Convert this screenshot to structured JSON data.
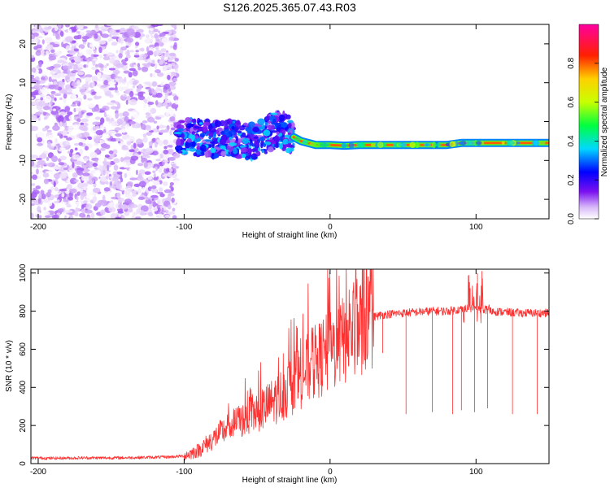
{
  "figure": {
    "title": "S126.2025.365.07.43.R03"
  },
  "chart_data": [
    {
      "type": "heatmap",
      "title": "",
      "xlabel": "Height of straight line (km)",
      "ylabel": "Frequency (Hz)",
      "xlim": [
        -205,
        150
      ],
      "ylim": [
        -25,
        25
      ],
      "xticks": [
        -200,
        -100,
        0,
        100
      ],
      "yticks": [
        -20,
        -10,
        0,
        10,
        20
      ],
      "colorbar": {
        "label": "Normalized spectral amplitude",
        "range": [
          0.0,
          1.0
        ],
        "ticks": [
          "0.0",
          "0.2",
          "0.4",
          "0.6",
          "0.8"
        ],
        "tick_values": [
          0.0,
          0.2,
          0.4,
          0.6,
          0.8
        ],
        "colors": [
          "#ffffff",
          "#d8b8f8",
          "#7a10f0",
          "#0000ff",
          "#00d8ff",
          "#00ff40",
          "#c8ff00",
          "#ffd000",
          "#ff2000",
          "#ff00a0"
        ]
      },
      "signal_trace": {
        "x": [
          -100,
          -90,
          -80,
          -70,
          -60,
          -50,
          -42,
          -35,
          -30,
          -25,
          -20,
          -15,
          -10,
          -5,
          0,
          10,
          20,
          40,
          60,
          80,
          90,
          100,
          110,
          130,
          150
        ],
        "y": [
          -4,
          -4,
          -4.5,
          -4,
          -5,
          -5,
          -3,
          -2,
          -2.5,
          -4,
          -5,
          -5.5,
          -6,
          -6,
          -6,
          -6.2,
          -6,
          -6,
          -6,
          -6,
          -5.5,
          -5.5,
          -5.5,
          -5.5,
          -5.5
        ]
      },
      "regions": [
        {
          "x_range": [
            -205,
            -105
          ],
          "y_range": [
            -25,
            25
          ],
          "amplitude_range": [
            0.0,
            0.18
          ],
          "description": "diffuse noise"
        },
        {
          "x_range": [
            -105,
            -25
          ],
          "y_range": [
            -16,
            2
          ],
          "amplitude_range": [
            0.15,
            0.45
          ],
          "description": "scattered blue/cyan blobs"
        },
        {
          "x_range": [
            -25,
            150
          ],
          "y_range": [
            -7,
            -4
          ],
          "amplitude_range": [
            0.5,
            1.0
          ],
          "description": "narrow high amplitude tone"
        }
      ]
    },
    {
      "type": "line",
      "title": "",
      "xlabel": "Height of straight line (km)",
      "ylabel": "SNR (10 * v/v)",
      "xlim": [
        -205,
        150
      ],
      "ylim": [
        0,
        1020
      ],
      "xticks": [
        -200,
        -100,
        0,
        100
      ],
      "yticks": [
        0,
        200,
        400,
        600,
        800,
        1000
      ],
      "series": [
        {
          "name": "SNR",
          "color": "#ff3030",
          "x": [
            -205,
            -190,
            -170,
            -150,
            -130,
            -110,
            -100,
            -95,
            -90,
            -85,
            -80,
            -75,
            -70,
            -65,
            -60,
            -55,
            -50,
            -45,
            -40,
            -35,
            -30,
            -25,
            -20,
            -15,
            -10,
            -5,
            0,
            5,
            10,
            15,
            20,
            25,
            30,
            35,
            40,
            50,
            60,
            70,
            80,
            90,
            100,
            110,
            120,
            130,
            140,
            150
          ],
          "y": [
            30,
            28,
            30,
            30,
            32,
            35,
            40,
            55,
            70,
            100,
            130,
            160,
            190,
            210,
            230,
            250,
            270,
            290,
            320,
            350,
            380,
            420,
            460,
            500,
            530,
            560,
            580,
            620,
            650,
            690,
            720,
            750,
            770,
            780,
            785,
            790,
            795,
            800,
            800,
            810,
            820,
            800,
            795,
            790,
            790,
            790
          ],
          "spikes": [
            {
              "x": 36,
              "y": 580
            },
            {
              "x": 52,
              "y": 260
            },
            {
              "x": 70,
              "y": 270
            },
            {
              "x": 84,
              "y": 260
            },
            {
              "x": 90,
              "y": 280
            },
            {
              "x": 96,
              "y": 920
            },
            {
              "x": 99,
              "y": 270
            },
            {
              "x": 101,
              "y": 1000
            },
            {
              "x": 104,
              "y": 1010
            },
            {
              "x": 108,
              "y": 290
            },
            {
              "x": 125,
              "y": 260
            },
            {
              "x": 142,
              "y": 260
            }
          ]
        }
      ]
    }
  ]
}
